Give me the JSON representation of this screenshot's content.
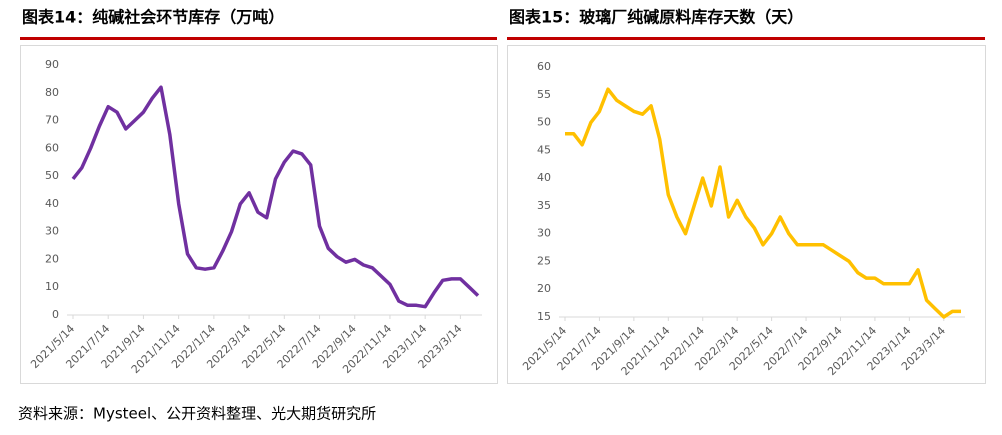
{
  "chart_data": [
    {
      "type": "line",
      "title": "图表14：纯碱社会环节库存（万吨）",
      "categories": [
        "2021/5/14",
        null,
        null,
        null,
        "2021/7/14",
        null,
        null,
        null,
        "2021/9/14",
        null,
        null,
        null,
        "2021/11/14",
        null,
        null,
        null,
        "2022/1/14",
        null,
        null,
        null,
        "2022/3/14",
        null,
        null,
        null,
        "2022/5/14",
        null,
        null,
        null,
        "2022/7/14",
        null,
        null,
        null,
        "2022/9/14",
        null,
        null,
        null,
        "2022/11/14",
        null,
        null,
        null,
        "2023/1/14",
        null,
        null,
        null,
        "2023/3/14",
        null,
        null
      ],
      "series": [
        {
          "color": "#7030a0",
          "values": [
            49,
            53,
            60,
            68,
            75,
            73,
            67,
            70,
            73,
            78,
            82,
            65,
            40,
            22,
            17,
            16.5,
            17,
            23,
            30,
            40,
            44,
            37,
            35,
            49,
            55,
            59,
            58,
            54,
            32,
            24,
            21,
            19,
            20,
            18,
            17,
            14,
            11,
            5,
            3.5,
            3.5,
            3,
            8,
            12.5,
            13,
            13,
            10,
            7
          ]
        }
      ],
      "ylim": [
        0,
        90
      ],
      "yticks": [
        0,
        10,
        20,
        30,
        40,
        50,
        60,
        70,
        80,
        90
      ]
    },
    {
      "type": "line",
      "title": "图表15：玻璃厂纯碱原料库存天数（天）",
      "categories": [
        "2021/5/14",
        null,
        null,
        null,
        "2021/7/14",
        null,
        null,
        null,
        "2021/9/14",
        null,
        null,
        null,
        "2021/11/14",
        null,
        null,
        null,
        "2022/1/14",
        null,
        null,
        null,
        "2022/3/14",
        null,
        null,
        null,
        "2022/5/14",
        null,
        null,
        null,
        "2022/7/14",
        null,
        null,
        null,
        "2022/9/14",
        null,
        null,
        null,
        "2022/11/14",
        null,
        null,
        null,
        "2023/1/14",
        null,
        null,
        null,
        "2023/3/14",
        null,
        null
      ],
      "series": [
        {
          "color": "#ffc000",
          "values": [
            48,
            48,
            46,
            50,
            52,
            56,
            54,
            53,
            52,
            51.5,
            53,
            47,
            37,
            33,
            30,
            35,
            40,
            35,
            42,
            33,
            36,
            33,
            31,
            28,
            30,
            33,
            30,
            28,
            28,
            28,
            28,
            27,
            26,
            25,
            23,
            22,
            22,
            21,
            21,
            21,
            21,
            23.5,
            18,
            16.5,
            15,
            16,
            16
          ]
        }
      ],
      "ylim": [
        15,
        60
      ],
      "yticks": [
        15,
        20,
        25,
        30,
        35,
        40,
        45,
        50,
        55,
        60
      ]
    }
  ],
  "source": "资料来源：Mysteel、公开资料整理、光大期货研究所"
}
